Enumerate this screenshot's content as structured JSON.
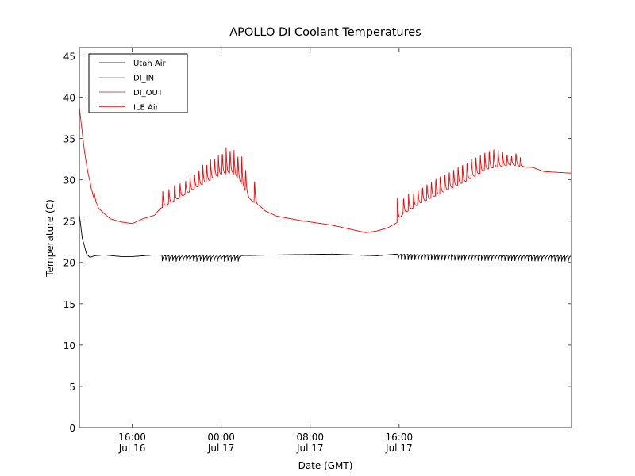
{
  "chart_data": {
    "type": "line",
    "title": "APOLLO DI Coolant Temperatures",
    "xlabel": "Date (GMT)",
    "ylabel": "Temperature (C)",
    "ylim": [
      0,
      46
    ],
    "xlim_hours": [
      11.25,
      55.5
    ],
    "x_unit": "hours since Jul 16 00:00 GMT",
    "grid": false,
    "legend_position": "top-left",
    "yticks": [
      0,
      5,
      10,
      15,
      20,
      25,
      30,
      35,
      40,
      45
    ],
    "xticks": [
      {
        "hour": 16,
        "time": "16:00",
        "date": "Jul 16"
      },
      {
        "hour": 24,
        "time": "00:00",
        "date": "Jul 17"
      },
      {
        "hour": 32,
        "time": "08:00",
        "date": "Jul 17"
      },
      {
        "hour": 40,
        "time": "16:00",
        "date": "Jul 17"
      }
    ],
    "series": [
      {
        "name": "Utah Air",
        "color": "#000000",
        "baseline": [
          [
            11.25,
            25.8
          ],
          [
            11.5,
            23.0
          ],
          [
            11.9,
            21.0
          ],
          [
            12.2,
            20.6
          ],
          [
            12.6,
            20.8
          ],
          [
            13.5,
            20.9
          ],
          [
            15,
            20.7
          ],
          [
            16,
            20.7
          ],
          [
            17,
            20.8
          ],
          [
            18,
            20.9
          ],
          [
            19.5,
            20.8
          ],
          [
            25,
            20.8
          ],
          [
            29,
            20.9
          ],
          [
            34,
            21.0
          ],
          [
            38,
            20.8
          ],
          [
            39.8,
            21.0
          ],
          [
            55.5,
            20.8
          ]
        ],
        "oscillation_windows": [
          {
            "start": 18.7,
            "end": 25.8,
            "period": 0.31,
            "dip": 0.8
          },
          {
            "start": 39.9,
            "end": 55.5,
            "period": 0.3,
            "dip": 0.8
          }
        ]
      },
      {
        "name": "DI_IN",
        "color": "#e8c000",
        "values": []
      },
      {
        "name": "DI_OUT",
        "color": "#8b1a8b",
        "values": []
      },
      {
        "name": "ILE Air",
        "color": "#ff0000",
        "baseline": [
          [
            11.25,
            38.8
          ],
          [
            11.4,
            37.0
          ],
          [
            11.7,
            33.5
          ],
          [
            12.0,
            31.0
          ],
          [
            12.5,
            28.0
          ],
          [
            13,
            26.5
          ],
          [
            14,
            25.3
          ],
          [
            15,
            24.9
          ],
          [
            16,
            24.7
          ],
          [
            17,
            25.3
          ],
          [
            18,
            25.7
          ],
          [
            18.5,
            26.5
          ],
          [
            20,
            27.6
          ],
          [
            22,
            29.2
          ],
          [
            24,
            30.6
          ],
          [
            25,
            30.8
          ],
          [
            25.5,
            30.2
          ],
          [
            26,
            29.0
          ],
          [
            26.5,
            27.8
          ],
          [
            27,
            27.2
          ],
          [
            27.5,
            26.8
          ],
          [
            28,
            26.2
          ],
          [
            29,
            25.6
          ],
          [
            31,
            25.1
          ],
          [
            34,
            24.5
          ],
          [
            36,
            23.9
          ],
          [
            37,
            23.6
          ],
          [
            38,
            23.8
          ],
          [
            39,
            24.2
          ],
          [
            39.8,
            24.8
          ],
          [
            40.3,
            25.8
          ],
          [
            42,
            27.2
          ],
          [
            44,
            28.5
          ],
          [
            46,
            29.8
          ],
          [
            48,
            31.3
          ],
          [
            50,
            31.8
          ],
          [
            51,
            31.6
          ],
          [
            52,
            31.5
          ],
          [
            53,
            31.0
          ],
          [
            55.5,
            30.8
          ]
        ],
        "spikes": [
          {
            "hour": 12.3,
            "peak": 29.0
          },
          {
            "hour": 12.6,
            "peak": 28.5
          },
          {
            "hour": 18.75,
            "peak": 28.6
          },
          {
            "hour": 19.3,
            "peak": 29.1
          },
          {
            "hour": 19.8,
            "peak": 29.6
          },
          {
            "hour": 20.3,
            "peak": 29.8
          },
          {
            "hour": 20.8,
            "peak": 30.1
          },
          {
            "hour": 21.2,
            "peak": 30.6
          },
          {
            "hour": 21.6,
            "peak": 30.9
          },
          {
            "hour": 22.0,
            "peak": 31.4
          },
          {
            "hour": 22.35,
            "peak": 31.8
          },
          {
            "hour": 22.7,
            "peak": 32.1
          },
          {
            "hour": 23.05,
            "peak": 32.4
          },
          {
            "hour": 23.4,
            "peak": 32.8
          },
          {
            "hour": 23.75,
            "peak": 33.0
          },
          {
            "hour": 24.1,
            "peak": 33.5
          },
          {
            "hour": 24.45,
            "peak": 33.9
          },
          {
            "hour": 24.8,
            "peak": 33.9
          },
          {
            "hour": 25.15,
            "peak": 33.6
          },
          {
            "hour": 25.5,
            "peak": 33.2
          },
          {
            "hour": 25.85,
            "peak": 32.8
          },
          {
            "hour": 26.2,
            "peak": 31.6
          },
          {
            "hour": 27.0,
            "peak": 30.2
          },
          {
            "hour": 39.85,
            "peak": 27.8
          },
          {
            "hour": 40.4,
            "peak": 28.0
          },
          {
            "hour": 40.85,
            "peak": 28.3
          },
          {
            "hour": 41.3,
            "peak": 28.6
          },
          {
            "hour": 41.7,
            "peak": 28.9
          },
          {
            "hour": 42.1,
            "peak": 29.3
          },
          {
            "hour": 42.5,
            "peak": 29.7
          },
          {
            "hour": 42.9,
            "peak": 30.0
          },
          {
            "hour": 43.3,
            "peak": 30.4
          },
          {
            "hour": 43.7,
            "peak": 30.7
          },
          {
            "hour": 44.1,
            "peak": 30.9
          },
          {
            "hour": 44.5,
            "peak": 31.2
          },
          {
            "hour": 44.9,
            "peak": 31.5
          },
          {
            "hour": 45.3,
            "peak": 31.8
          },
          {
            "hour": 45.7,
            "peak": 32.1
          },
          {
            "hour": 46.1,
            "peak": 32.4
          },
          {
            "hour": 46.5,
            "peak": 32.8
          },
          {
            "hour": 46.9,
            "peak": 33.0
          },
          {
            "hour": 47.3,
            "peak": 33.3
          },
          {
            "hour": 47.7,
            "peak": 33.6
          },
          {
            "hour": 48.1,
            "peak": 33.8
          },
          {
            "hour": 48.5,
            "peak": 34.0
          },
          {
            "hour": 48.9,
            "peak": 33.9
          },
          {
            "hour": 49.3,
            "peak": 33.6
          },
          {
            "hour": 49.7,
            "peak": 33.2
          },
          {
            "hour": 50.1,
            "peak": 33.0
          },
          {
            "hour": 50.5,
            "peak": 33.4
          },
          {
            "hour": 50.9,
            "peak": 32.9
          }
        ]
      }
    ]
  }
}
